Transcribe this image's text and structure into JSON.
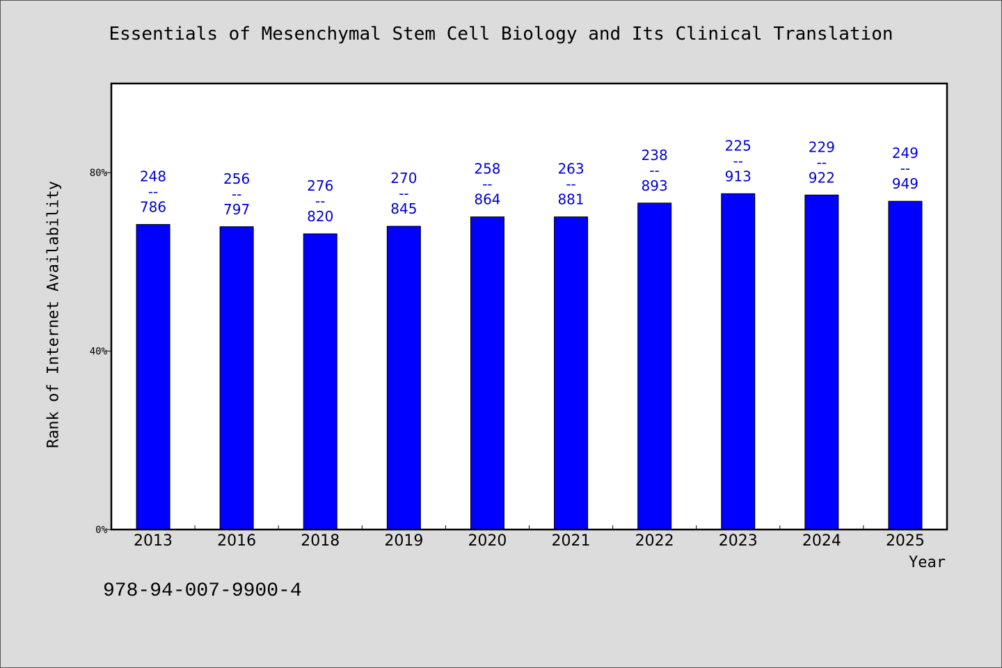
{
  "chart_data": {
    "type": "bar",
    "title": "Essentials of Mesenchymal Stem Cell Biology and Its Clinical Translation",
    "xlabel": "Year",
    "ylabel": "Rank of Internet Availability",
    "ylim": [
      0,
      100
    ],
    "y_ticks": [
      {
        "value": 0,
        "label": "0%"
      },
      {
        "value": 40,
        "label": "40%"
      },
      {
        "value": 80,
        "label": "80%"
      }
    ],
    "categories": [
      "2013",
      "2016",
      "2018",
      "2019",
      "2020",
      "2021",
      "2022",
      "2023",
      "2024",
      "2025"
    ],
    "values": [
      68.4,
      67.9,
      66.3,
      68.0,
      70.1,
      70.1,
      73.2,
      75.3,
      75.0,
      73.6
    ],
    "bar_labels": [
      {
        "top": "248",
        "mid": "--",
        "bottom": "786"
      },
      {
        "top": "256",
        "mid": "--",
        "bottom": "797"
      },
      {
        "top": "276",
        "mid": "--",
        "bottom": "820"
      },
      {
        "top": "270",
        "mid": "--",
        "bottom": "845"
      },
      {
        "top": "258",
        "mid": "--",
        "bottom": "864"
      },
      {
        "top": "263",
        "mid": "--",
        "bottom": "881"
      },
      {
        "top": "238",
        "mid": "--",
        "bottom": "893"
      },
      {
        "top": "225",
        "mid": "--",
        "bottom": "913"
      },
      {
        "top": "229",
        "mid": "--",
        "bottom": "922"
      },
      {
        "top": "249",
        "mid": "--",
        "bottom": "949"
      }
    ],
    "grid": false,
    "colors": {
      "bar": "#0000ff",
      "label": "#0000cc",
      "plot_bg": "#ffffff",
      "page_bg": "#dcdcdc"
    }
  },
  "footer": {
    "isbn": "978-94-007-9900-4"
  }
}
